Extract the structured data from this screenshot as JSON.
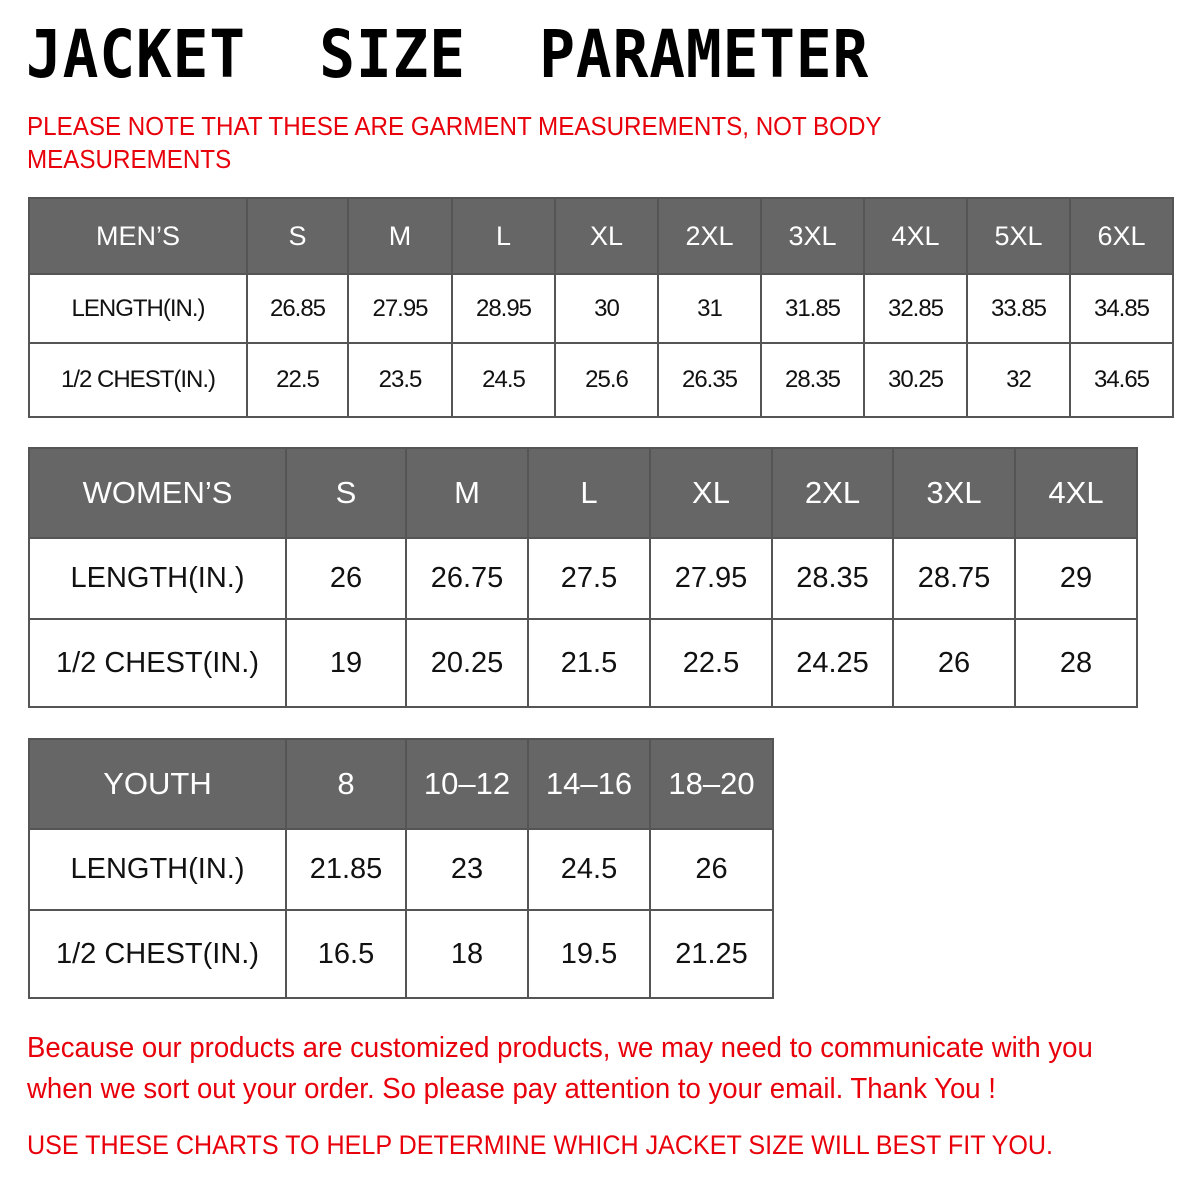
{
  "title": "JACKET  SIZE  PARAMETER",
  "note": "PLEASE NOTE THAT THESE ARE GARMENT MEASUREMENTS, NOT BODY MEASUREMENTS",
  "colors": {
    "header_bg": "#666666",
    "accent_red": "#e8000b"
  },
  "tables": {
    "men": {
      "header": [
        "MEN’S",
        "S",
        "M",
        "L",
        "XL",
        "2XL",
        "3XL",
        "4XL",
        "5XL",
        "6XL"
      ],
      "rows": [
        [
          "LENGTH(IN.)",
          "26.85",
          "27.95",
          "28.95",
          "30",
          "31",
          "31.85",
          "32.85",
          "33.85",
          "34.85"
        ],
        [
          "1/2 CHEST(IN.)",
          "22.5",
          "23.5",
          "24.5",
          "25.6",
          "26.35",
          "28.35",
          "30.25",
          "32",
          "34.65"
        ]
      ]
    },
    "women": {
      "header": [
        "WOMEN’S",
        "S",
        "M",
        "L",
        "XL",
        "2XL",
        "3XL",
        "4XL"
      ],
      "rows": [
        [
          "LENGTH(IN.)",
          "26",
          "26.75",
          "27.5",
          "27.95",
          "28.35",
          "28.75",
          "29"
        ],
        [
          "1/2 CHEST(IN.)",
          "19",
          "20.25",
          "21.5",
          "22.5",
          "24.25",
          "26",
          "28"
        ]
      ]
    },
    "youth": {
      "header": [
        "YOUTH",
        "8",
        "10–12",
        "14–16",
        "18–20"
      ],
      "rows": [
        [
          "LENGTH(IN.)",
          "21.85",
          "23",
          "24.5",
          "26"
        ],
        [
          "1/2 CHEST(IN.)",
          "16.5",
          "18",
          "19.5",
          "21.25"
        ]
      ]
    }
  },
  "footer": "Because our products are customized products, we may need to communicate with you when we sort out your order. So please pay attention to your email. Thank You !",
  "footer2": "USE THESE CHARTS TO HELP DETERMINE WHICH JACKET SIZE WILL BEST FIT YOU."
}
